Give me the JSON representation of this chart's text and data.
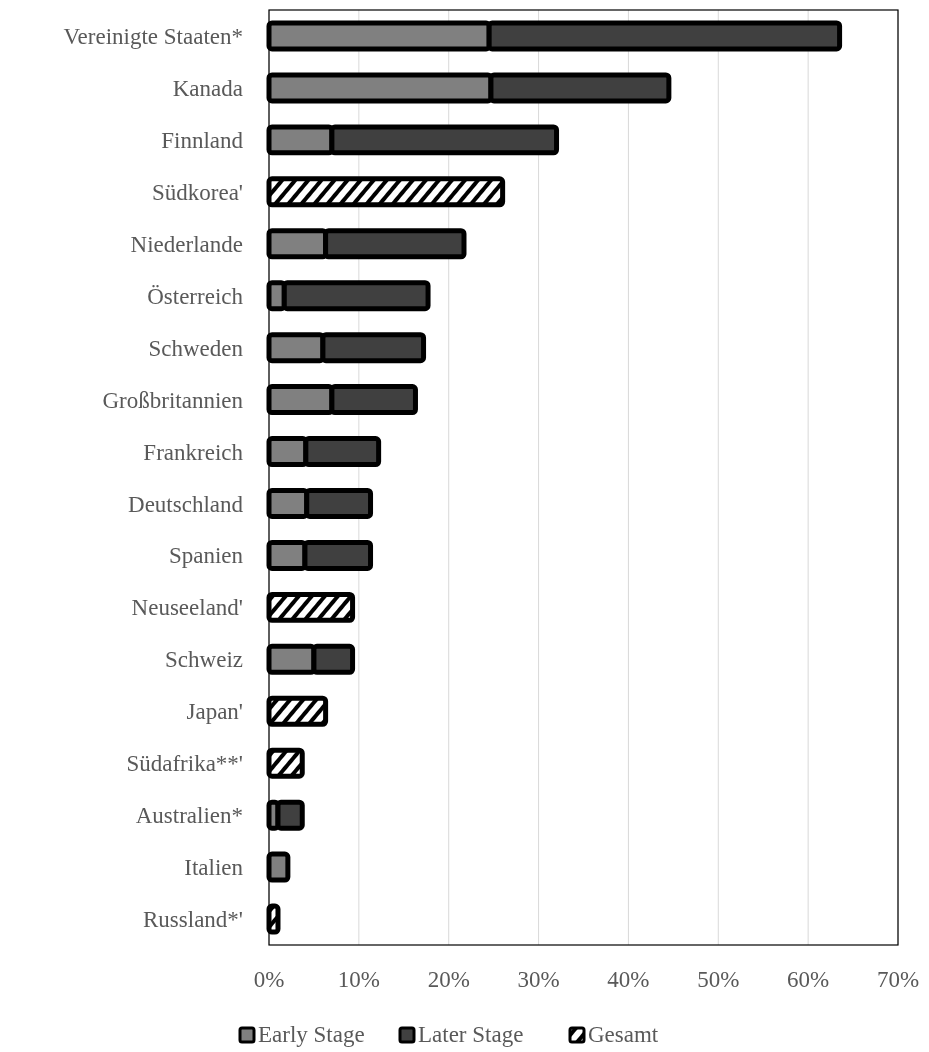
{
  "chart_data": {
    "type": "bar",
    "orientation": "horizontal",
    "stacked": true,
    "categories": [
      "Vereinigte Staaten*",
      "Kanada",
      "Finnland",
      "Südkorea'",
      "Niederlande",
      "Österreich",
      "Schweden",
      "Großbritannien",
      "Frankreich",
      "Deutschland",
      "Spanien",
      "Neuseeland'",
      "Schweiz",
      "Japan'",
      "Südafrika**'",
      "Australien*",
      "Italien",
      "Russland*'"
    ],
    "series": [
      {
        "name": "Early Stage",
        "color": "#808080",
        "values": [
          24.5,
          24.7,
          7,
          null,
          6.3,
          1.7,
          6,
          7,
          4.1,
          4.2,
          4,
          null,
          5,
          null,
          null,
          1,
          2.1,
          null
        ]
      },
      {
        "name": "Later Stage",
        "color": "#404040",
        "values": [
          39,
          19.8,
          25,
          null,
          15.4,
          16,
          11.2,
          9.3,
          8.1,
          7.1,
          7.3,
          null,
          4.3,
          null,
          null,
          2.7,
          null,
          null
        ]
      },
      {
        "name": "Gesamt",
        "color": "#000000",
        "values": [
          null,
          null,
          null,
          26,
          null,
          null,
          null,
          null,
          null,
          null,
          null,
          9.3,
          null,
          6.3,
          3.7,
          null,
          null,
          1
        ]
      }
    ],
    "xlim": [
      0,
      70
    ],
    "xticks": [
      {
        "value": 0,
        "label": "0%"
      },
      {
        "value": 10,
        "label": "10%"
      },
      {
        "value": 20,
        "label": "20%"
      },
      {
        "value": 30,
        "label": "30%"
      },
      {
        "value": 40,
        "label": "40%"
      },
      {
        "value": 50,
        "label": "50%"
      },
      {
        "value": 60,
        "label": "60%"
      },
      {
        "value": 70,
        "label": "70%"
      }
    ],
    "grid": "x",
    "legend": "bottom"
  }
}
